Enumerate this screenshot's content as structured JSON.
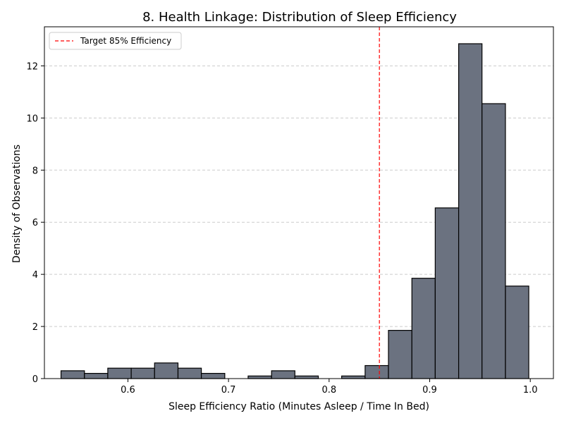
{
  "chart_data": {
    "type": "histogram",
    "title": "8. Health Linkage: Distribution of Sleep Efficiency",
    "xlabel": "Sleep Efficiency Ratio (Minutes Asleep / Time In Bed)",
    "ylabel": "Density of Observations",
    "xlim": [
      0.517,
      1.023
    ],
    "ylim": [
      0,
      13.5
    ],
    "x_ticks": [
      0.6,
      0.7,
      0.8,
      0.9,
      1.0
    ],
    "x_tick_labels": [
      "0.6",
      "0.7",
      "0.8",
      "0.9",
      "1.0"
    ],
    "y_ticks": [
      0,
      2,
      4,
      6,
      8,
      10,
      12
    ],
    "y_tick_labels": [
      "0",
      "2",
      "4",
      "6",
      "8",
      "10",
      "12"
    ],
    "grid": {
      "y": true,
      "x": false,
      "style": "dashed"
    },
    "bar_color": "#6b7280",
    "bar_edge_color": "#000000",
    "bins": [
      {
        "x0": 0.5335,
        "x1": 0.5568,
        "density": 0.3
      },
      {
        "x0": 0.5568,
        "x1": 0.58,
        "density": 0.2
      },
      {
        "x0": 0.58,
        "x1": 0.6033,
        "density": 0.4
      },
      {
        "x0": 0.6033,
        "x1": 0.6265,
        "density": 0.4
      },
      {
        "x0": 0.6265,
        "x1": 0.6498,
        "density": 0.6
      },
      {
        "x0": 0.6498,
        "x1": 0.673,
        "density": 0.4
      },
      {
        "x0": 0.673,
        "x1": 0.6963,
        "density": 0.2
      },
      {
        "x0": 0.6963,
        "x1": 0.7195,
        "density": 0.0
      },
      {
        "x0": 0.7195,
        "x1": 0.7428,
        "density": 0.1
      },
      {
        "x0": 0.7428,
        "x1": 0.766,
        "density": 0.3
      },
      {
        "x0": 0.766,
        "x1": 0.7893,
        "density": 0.1
      },
      {
        "x0": 0.7893,
        "x1": 0.8125,
        "density": 0.0
      },
      {
        "x0": 0.8125,
        "x1": 0.8358,
        "density": 0.1
      },
      {
        "x0": 0.8358,
        "x1": 0.859,
        "density": 0.5
      },
      {
        "x0": 0.859,
        "x1": 0.8823,
        "density": 1.85
      },
      {
        "x0": 0.8823,
        "x1": 0.9055,
        "density": 3.85
      },
      {
        "x0": 0.9055,
        "x1": 0.9288,
        "density": 6.55
      },
      {
        "x0": 0.9288,
        "x1": 0.952,
        "density": 12.85
      },
      {
        "x0": 0.952,
        "x1": 0.9753,
        "density": 10.55
      },
      {
        "x0": 0.9753,
        "x1": 0.9985,
        "density": 3.55
      }
    ],
    "reference_line": {
      "x": 0.85,
      "label": "Target 85% Efficiency",
      "color": "#ff0000",
      "style": "dashed"
    },
    "legend": {
      "placement": "top-left",
      "entries": [
        "Target 85% Efficiency"
      ]
    }
  }
}
